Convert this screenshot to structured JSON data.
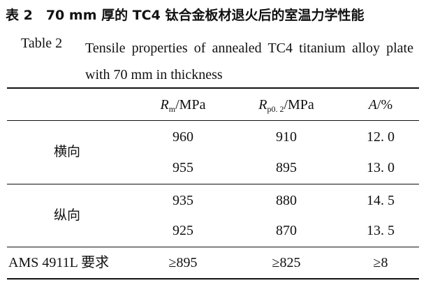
{
  "caption": {
    "zh": "表 2　70 mm 厚的 TC4 钛合金板材退火后的室温力学性能",
    "en_label": "Table 2",
    "en_text": "Tensile properties of annealed TC4 titanium alloy plate with 70 mm in thickness"
  },
  "table": {
    "header": [
      {
        "symbol": "R",
        "subscript": "m",
        "unit": "/MPa"
      },
      {
        "symbol": "R",
        "subscript": "p0. 2",
        "unit": "/MPa"
      },
      {
        "symbol": "A",
        "unit": "/%"
      }
    ],
    "groups": [
      {
        "label": "横向",
        "rows": [
          [
            "960",
            "910",
            "12. 0"
          ],
          [
            "955",
            "895",
            "13. 0"
          ]
        ]
      },
      {
        "label": "纵向",
        "rows": [
          [
            "935",
            "880",
            "14. 5"
          ],
          [
            "925",
            "870",
            "13. 5"
          ]
        ]
      }
    ],
    "requirement": {
      "label": "AMS 4911L 要求",
      "values": [
        "≥895",
        "≥825",
        "≥8"
      ]
    }
  }
}
